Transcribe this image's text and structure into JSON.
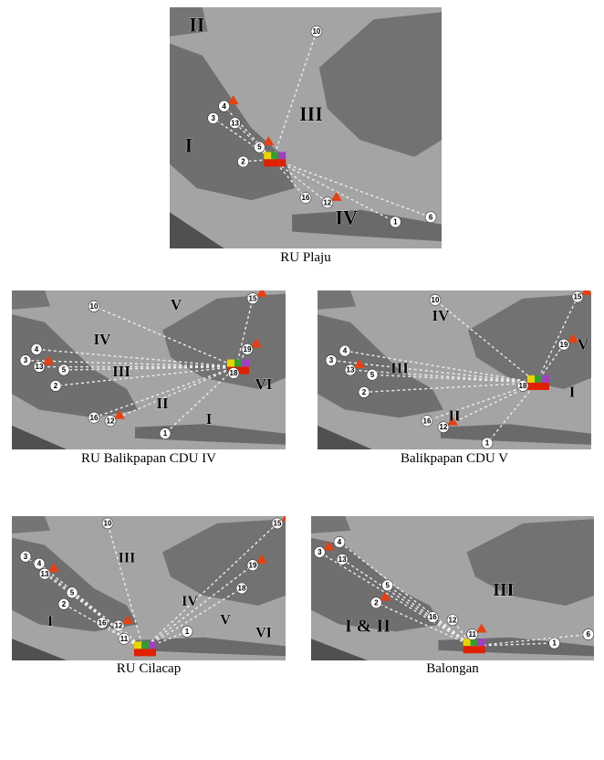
{
  "panels": [
    {
      "caption": "RU Plaju",
      "regions": [
        "II",
        "III",
        "I",
        "IV"
      ],
      "markers": [
        "10",
        "4",
        "3",
        "13",
        "5",
        "2",
        "16",
        "12",
        "1",
        "6"
      ]
    },
    {
      "caption": "RU Balikpapan CDU IV",
      "regions": [
        "V",
        "IV",
        "III",
        "II",
        "I",
        "VI"
      ],
      "markers": [
        "10",
        "15",
        "4",
        "3",
        "13",
        "5",
        "2",
        "19",
        "18",
        "16",
        "12",
        "1"
      ]
    },
    {
      "caption": "Balikpapan CDU V",
      "regions": [
        "IV",
        "III",
        "II",
        "I",
        "V"
      ],
      "markers": [
        "10",
        "15",
        "4",
        "3",
        "13",
        "5",
        "2",
        "19",
        "18",
        "16",
        "12",
        "1"
      ]
    },
    {
      "caption": "RU Cilacap",
      "regions": [
        "III",
        "IV",
        "V",
        "VI",
        "I"
      ],
      "markers": [
        "10",
        "15",
        "4",
        "3",
        "13",
        "5",
        "2",
        "19",
        "18",
        "16",
        "12",
        "11",
        "1"
      ]
    },
    {
      "caption": "Balongan",
      "regions": [
        "III",
        "I & II"
      ],
      "markers": [
        "4",
        "3",
        "13",
        "5",
        "2",
        "16",
        "12",
        "11",
        "1",
        "6"
      ]
    }
  ]
}
